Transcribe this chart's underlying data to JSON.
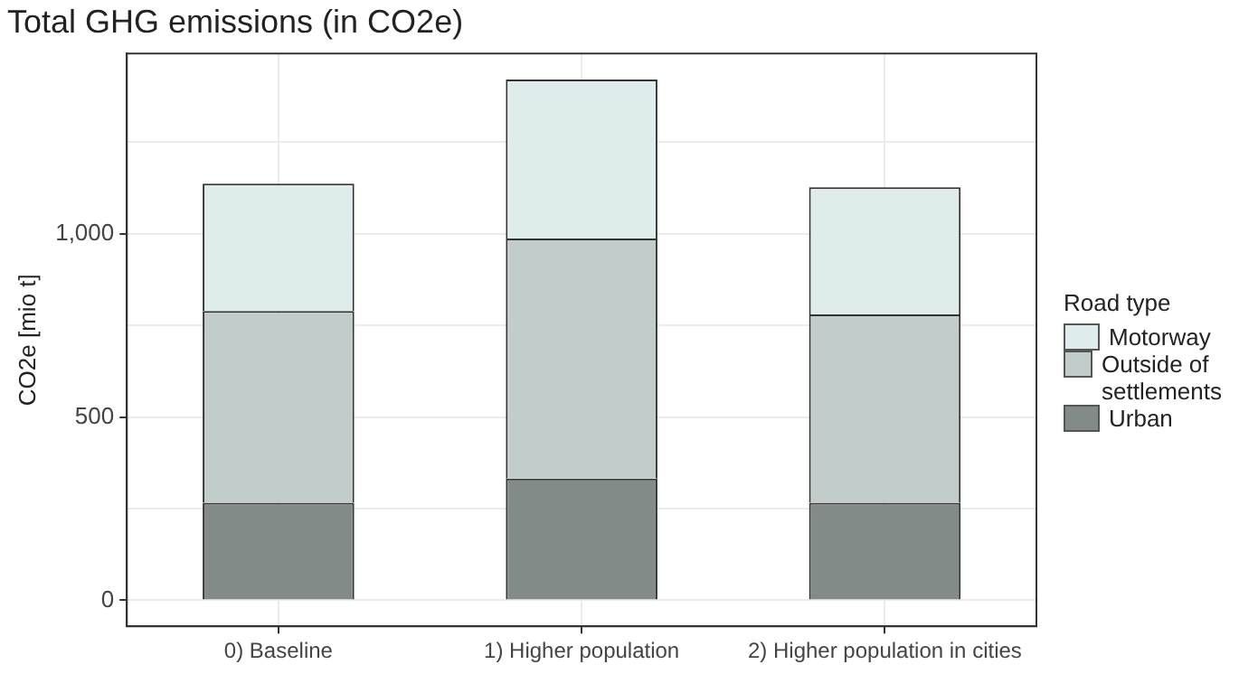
{
  "chart_data": {
    "type": "bar",
    "title": "Total GHG emissions (in CO2e)",
    "ylabel": "CO2e [mio t]",
    "legend_title": "Road type",
    "categories": [
      "0) Baseline",
      "1) Higher population",
      "2) Higher population in cities"
    ],
    "stacked": true,
    "series": [
      {
        "name": "Urban",
        "color": "#838b89",
        "values": [
          266,
          332,
          266
        ]
      },
      {
        "name": "Outside of settlements",
        "color": "#c1cccb",
        "values": [
          523,
          655,
          514
        ]
      },
      {
        "name": "Motorway",
        "color": "#deeceb",
        "values": [
          348,
          434,
          347
        ]
      }
    ],
    "ylim": [
      -71,
      1492
    ],
    "yticks": [
      0,
      {
        "value": 250,
        "label": null
      },
      500,
      {
        "value": 750,
        "label": null
      },
      {
        "value": 1000,
        "label": "1,000"
      },
      {
        "value": 1250,
        "label": null
      }
    ],
    "grid": true,
    "legend": "right"
  }
}
